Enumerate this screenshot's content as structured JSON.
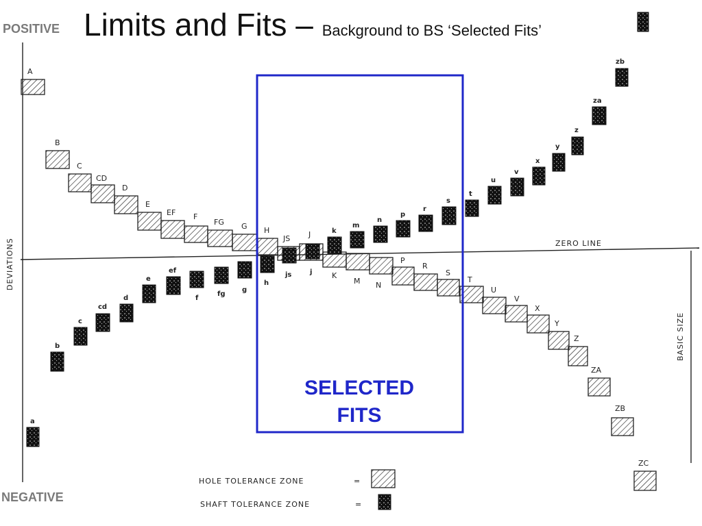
{
  "slide": {
    "corner_positive": "POSITIVE",
    "corner_negative": "NEGATIVE",
    "title_main": "Limits and Fits – ",
    "title_sub": "Background to BS ‘Selected Fits’"
  },
  "diagram": {
    "axis_left_label": "DEVIATIONS",
    "axis_right_label": "BASIC SIZE",
    "zero_line_label": "ZERO LINE",
    "selected_label_line1": "SELECTED",
    "selected_label_line2": "FITS",
    "selection_color": "#1f27c9",
    "legend": {
      "hole_label": "HOLE TOLERANCE ZONE",
      "shaft_label": "SHAFT TOLERANCE ZONE",
      "equals": "="
    },
    "holes": [
      "A",
      "B",
      "C",
      "CD",
      "D",
      "E",
      "EF",
      "F",
      "FG",
      "G",
      "H",
      "JS",
      "J",
      "K",
      "M",
      "N",
      "P",
      "R",
      "S",
      "T",
      "U",
      "V",
      "X",
      "Y",
      "Z",
      "ZA",
      "ZB",
      "ZC"
    ],
    "shafts": [
      "a",
      "b",
      "c",
      "cd",
      "d",
      "e",
      "ef",
      "f",
      "fg",
      "g",
      "h",
      "js",
      "j",
      "k",
      "m",
      "n",
      "p",
      "r",
      "s",
      "t",
      "u",
      "v",
      "x",
      "y",
      "z",
      "za",
      "zb"
    ]
  }
}
